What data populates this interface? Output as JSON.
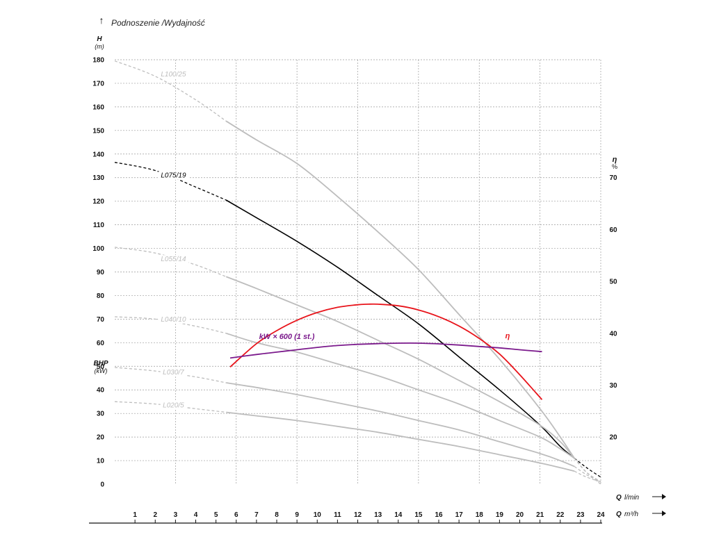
{
  "chart_data": {
    "type": "line",
    "title": "Podnoszenie /Wydajność",
    "y_left": {
      "label": "H",
      "unit": "(m)",
      "range": [
        0,
        180
      ],
      "ticks": [
        0,
        10,
        20,
        30,
        40,
        50,
        60,
        70,
        80,
        90,
        100,
        110,
        120,
        130,
        140,
        150,
        160,
        170,
        180
      ]
    },
    "y_left_secondary": {
      "label": "BHP",
      "unit": "(kW)"
    },
    "y_right": {
      "label": "η",
      "unit": "%",
      "ticks": [
        20,
        30,
        40,
        50,
        60,
        70
      ]
    },
    "x_bottom": {
      "label": "Q",
      "unit": "m³/h",
      "range": [
        0,
        24
      ],
      "ticks": [
        1,
        2,
        3,
        4,
        5,
        6,
        7,
        8,
        9,
        10,
        11,
        12,
        13,
        14,
        15,
        16,
        17,
        18,
        19,
        20,
        21,
        22,
        23,
        24
      ]
    },
    "x_top": {
      "label": "Q",
      "unit": "l/min"
    },
    "grid": true,
    "series": [
      {
        "name": "L100/25",
        "axis": "H",
        "color": "#bdbdbd",
        "label_color": "#bdbdbd",
        "label_at": [
          2.9,
          173
        ],
        "dashed": [
          [
            0,
            179.5
          ],
          [
            2,
            173
          ],
          [
            4,
            163
          ],
          [
            5.5,
            154
          ]
        ],
        "solid": [
          [
            5.5,
            154
          ],
          [
            7,
            146
          ],
          [
            9,
            136
          ],
          [
            11,
            122
          ],
          [
            13,
            107
          ],
          [
            15,
            91
          ],
          [
            17,
            72
          ],
          [
            19,
            53
          ],
          [
            21,
            32
          ],
          [
            22,
            20
          ],
          [
            22.7,
            11
          ]
        ],
        "tail": [
          [
            22.7,
            11
          ],
          [
            23.3,
            5
          ],
          [
            24,
            0
          ]
        ]
      },
      {
        "name": "L075/19",
        "axis": "H",
        "color": "#000000",
        "label_color": "#000000",
        "label_at": [
          2.9,
          130
        ],
        "dashed": [
          [
            0,
            136.5
          ],
          [
            2,
            133
          ],
          [
            4,
            126
          ],
          [
            5.5,
            120.5
          ]
        ],
        "solid": [
          [
            5.5,
            120.5
          ],
          [
            7,
            113
          ],
          [
            9,
            103
          ],
          [
            11,
            92
          ],
          [
            13,
            80
          ],
          [
            15,
            68
          ],
          [
            17,
            54
          ],
          [
            19,
            40
          ],
          [
            21,
            25
          ],
          [
            22,
            16
          ],
          [
            22.7,
            11
          ]
        ],
        "tail": [
          [
            22.7,
            11
          ],
          [
            23.3,
            7
          ],
          [
            24,
            3
          ]
        ]
      },
      {
        "name": "L055/14",
        "axis": "H",
        "color": "#bdbdbd",
        "label_color": "#bdbdbd",
        "label_at": [
          2.9,
          94.5
        ],
        "dashed": [
          [
            0,
            100.5
          ],
          [
            2,
            98
          ],
          [
            4,
            93
          ],
          [
            5.5,
            88
          ]
        ],
        "solid": [
          [
            5.5,
            88
          ],
          [
            7,
            83
          ],
          [
            9,
            76
          ],
          [
            11,
            69
          ],
          [
            13,
            61
          ],
          [
            15,
            53
          ],
          [
            17,
            44
          ],
          [
            19,
            35
          ],
          [
            21,
            25
          ],
          [
            22,
            18
          ],
          [
            22.7,
            11
          ]
        ],
        "tail": [
          [
            22.7,
            11
          ],
          [
            23.3,
            5
          ],
          [
            24,
            1
          ]
        ]
      },
      {
        "name": "L040/10",
        "axis": "H",
        "color": "#bdbdbd",
        "label_color": "#bdbdbd",
        "label_at": [
          2.9,
          69
        ],
        "dashed": [
          [
            0,
            71
          ],
          [
            2,
            70
          ],
          [
            4,
            67
          ],
          [
            5.5,
            64
          ]
        ],
        "solid": [
          [
            5.5,
            64
          ],
          [
            7,
            60
          ],
          [
            9,
            56
          ],
          [
            11,
            51
          ],
          [
            13,
            46
          ],
          [
            15,
            40
          ],
          [
            17,
            34
          ],
          [
            19,
            27
          ],
          [
            21,
            20
          ],
          [
            22,
            15
          ],
          [
            22.7,
            11
          ]
        ],
        "tail": [
          [
            22.7,
            11
          ],
          [
            23.3,
            5
          ],
          [
            24,
            1
          ]
        ]
      },
      {
        "name": "L030/7",
        "axis": "H",
        "color": "#bdbdbd",
        "label_color": "#bdbdbd",
        "label_at": [
          2.9,
          46.5
        ],
        "dashed": [
          [
            0,
            49.5
          ],
          [
            2,
            48
          ],
          [
            4,
            45.5
          ],
          [
            5.5,
            43
          ]
        ],
        "solid": [
          [
            5.5,
            43
          ],
          [
            7,
            41
          ],
          [
            9,
            38
          ],
          [
            11,
            34.5
          ],
          [
            13,
            31
          ],
          [
            15,
            27
          ],
          [
            17,
            23
          ],
          [
            19,
            18
          ],
          [
            21,
            13
          ],
          [
            22,
            10
          ],
          [
            22.7,
            7.5
          ]
        ],
        "tail": [
          [
            22.7,
            7.5
          ],
          [
            23.3,
            4
          ],
          [
            24,
            1
          ]
        ]
      },
      {
        "name": "L020/5",
        "axis": "H",
        "color": "#bdbdbd",
        "label_color": "#bdbdbd",
        "label_at": [
          2.9,
          32.5
        ],
        "dashed": [
          [
            0,
            35
          ],
          [
            2,
            34
          ],
          [
            4,
            32
          ],
          [
            5.5,
            30.5
          ]
        ],
        "solid": [
          [
            5.5,
            30.5
          ],
          [
            7,
            29
          ],
          [
            9,
            27
          ],
          [
            11,
            24.5
          ],
          [
            13,
            22
          ],
          [
            15,
            19
          ],
          [
            17,
            16
          ],
          [
            19,
            12.5
          ],
          [
            21,
            9
          ],
          [
            22,
            7
          ],
          [
            22.7,
            5.5
          ]
        ],
        "tail": [
          [
            22.7,
            5.5
          ],
          [
            23.3,
            3
          ],
          [
            24,
            1
          ]
        ]
      },
      {
        "name": "η",
        "axis": "η",
        "color": "#e8141b",
        "label_color": "#e8141b",
        "label_at": [
          19.4,
          39
        ],
        "solid": [
          [
            5.7,
            33.5
          ],
          [
            7,
            38
          ],
          [
            8,
            40.5
          ],
          [
            9,
            42.5
          ],
          [
            10,
            44
          ],
          [
            11,
            45
          ],
          [
            12,
            45.5
          ],
          [
            12.5,
            45.6
          ],
          [
            13,
            45.6
          ],
          [
            14,
            45.3
          ],
          [
            15,
            44.5
          ],
          [
            16,
            43.2
          ],
          [
            17,
            41.4
          ],
          [
            18,
            39
          ],
          [
            19,
            36
          ],
          [
            20,
            32
          ],
          [
            21.1,
            27.2
          ]
        ]
      },
      {
        "name": "kW × 600 (1 st.)",
        "axis": "H",
        "color": "#7b1a8c",
        "label_color": "#7b1a8c",
        "label_at": [
          8.5,
          61.5
        ],
        "solid": [
          [
            5.7,
            53.5
          ],
          [
            7,
            55
          ],
          [
            8,
            56
          ],
          [
            9,
            57
          ],
          [
            10,
            58
          ],
          [
            11,
            58.8
          ],
          [
            12,
            59.3
          ],
          [
            13,
            59.6
          ],
          [
            14,
            59.8
          ],
          [
            15,
            59.8
          ],
          [
            16,
            59.5
          ],
          [
            17,
            59
          ],
          [
            18,
            58.4
          ],
          [
            19,
            57.8
          ],
          [
            20,
            57
          ],
          [
            21.1,
            56.2
          ]
        ]
      }
    ]
  }
}
